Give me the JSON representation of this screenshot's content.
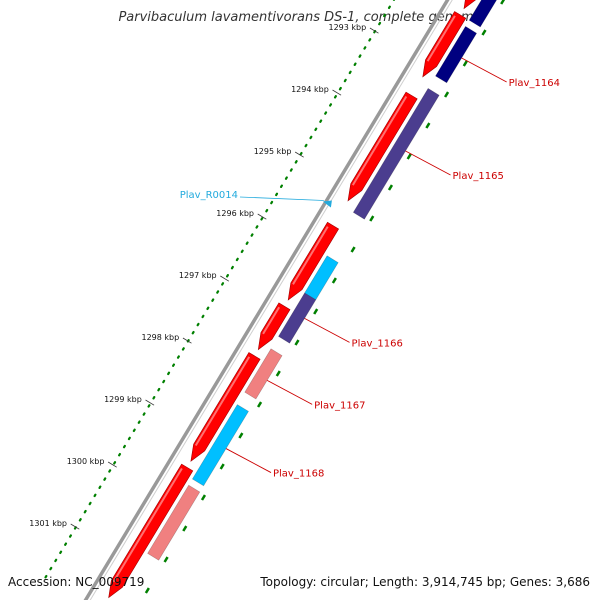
{
  "title": "Parvibaculum lavamentivorans DS-1, complete genome",
  "footer": {
    "accession": "Accession: NC_009719",
    "topology": "Topology: circular; Length: 3,914,745 bp; Genes: 3,686"
  },
  "colors": {
    "backbone": "#999999",
    "forward_cds": "#ff0000",
    "reverse_dark": "#000080",
    "reverse_purple": "#4b3d8f",
    "cyan": "#00bfff",
    "pink": "#f08080",
    "tick": "#008000",
    "label_red": "#cc0000",
    "label_rna": "#22aadd"
  },
  "scale": {
    "unit": "kbp",
    "ticks": [
      {
        "kbp": 1293,
        "label": "1293 kbp"
      },
      {
        "kbp": 1294,
        "label": "1294 kbp"
      },
      {
        "kbp": 1295,
        "label": "1295 kbp"
      },
      {
        "kbp": 1296,
        "label": "1296 kbp"
      },
      {
        "kbp": 1297,
        "label": "1297 kbp"
      },
      {
        "kbp": 1298,
        "label": "1298 kbp"
      },
      {
        "kbp": 1299,
        "label": "1299 kbp"
      },
      {
        "kbp": 1300,
        "label": "1300 kbp"
      },
      {
        "kbp": 1301,
        "label": "1301 kbp"
      }
    ]
  },
  "features": {
    "forward": [
      {
        "start": 1291.3,
        "end": 1292.1
      },
      {
        "start": 1292.2,
        "end": 1293.2
      },
      {
        "start": 1293.5,
        "end": 1295.2
      },
      {
        "start": 1295.6,
        "end": 1296.8
      },
      {
        "start": 1296.9,
        "end": 1297.6
      },
      {
        "start": 1297.7,
        "end": 1299.4
      },
      {
        "start": 1299.5,
        "end": 1301.6
      }
    ],
    "reverse": [
      {
        "start": 1291.5,
        "end": 1292.2,
        "color": "reverse_dark"
      },
      {
        "start": 1292.3,
        "end": 1293.1,
        "color": "reverse_dark"
      },
      {
        "start": 1293.3,
        "end": 1295.3,
        "color": "reverse_purple"
      },
      {
        "start": 1296.0,
        "end": 1296.6,
        "color": "cyan"
      },
      {
        "start": 1296.6,
        "end": 1297.3,
        "color": "reverse_purple"
      },
      {
        "start": 1297.5,
        "end": 1298.2,
        "color": "pink"
      },
      {
        "start": 1298.4,
        "end": 1299.6,
        "color": "cyan"
      },
      {
        "start": 1299.7,
        "end": 1300.8,
        "color": "pink"
      }
    ]
  },
  "labels": [
    {
      "text": "Plav_1164",
      "kbp": 1292.7
    },
    {
      "text": "Plav_1165",
      "kbp": 1294.2
    },
    {
      "text": "Plav_1166",
      "kbp": 1296.9
    },
    {
      "text": "Plav_1167",
      "kbp": 1297.9
    },
    {
      "text": "Plav_1168",
      "kbp": 1299.0
    }
  ],
  "rna": {
    "text": "Plav_R0014",
    "kbp": 1295.38
  }
}
